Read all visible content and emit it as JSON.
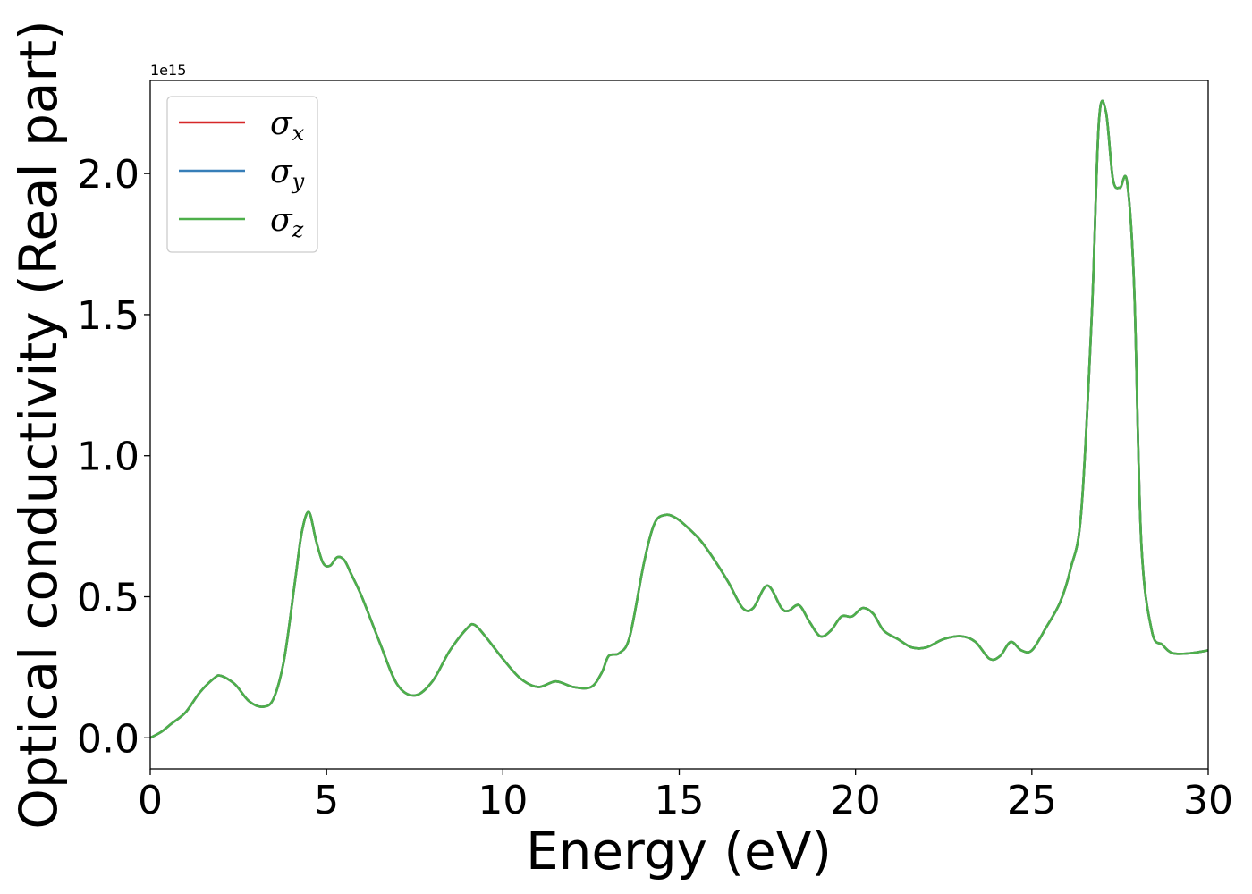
{
  "chart_data": {
    "type": "line",
    "xlabel": "Energy (eV)",
    "ylabel": "Optical conductivity (Real part)",
    "y_offset_label": "1e15",
    "xlim": [
      0,
      30
    ],
    "ylim": [
      -0.11,
      2.33
    ],
    "y_scale_factor": 1000000000000000.0,
    "x_ticks": [
      0,
      5,
      10,
      15,
      20,
      25,
      30
    ],
    "x_tick_labels": [
      "0",
      "5",
      "10",
      "15",
      "20",
      "25",
      "30"
    ],
    "y_ticks": [
      0.0,
      0.5,
      1.0,
      1.5,
      2.0
    ],
    "y_tick_labels": [
      "0.0",
      "0.5",
      "1.0",
      "1.5",
      "2.0"
    ],
    "grid": false,
    "legend_position": "top-left",
    "series": [
      {
        "name": "σx",
        "symbol": "σ",
        "subscript": "x",
        "color": "#d62728",
        "x": [
          0,
          0.3,
          0.6,
          1.0,
          1.4,
          1.8,
          2.0,
          2.4,
          2.8,
          3.2,
          3.5,
          3.8,
          4.1,
          4.3,
          4.5,
          4.7,
          4.9,
          5.1,
          5.3,
          5.5,
          5.7,
          6.0,
          6.5,
          7.0,
          7.5,
          8.0,
          8.5,
          9.0,
          9.2,
          9.5,
          10.0,
          10.5,
          11.0,
          11.5,
          12.0,
          12.5,
          12.8,
          13.0,
          13.3,
          13.6,
          14.0,
          14.3,
          14.6,
          14.9,
          15.2,
          15.6,
          16.0,
          16.4,
          16.8,
          17.1,
          17.5,
          17.9,
          18.1,
          18.4,
          18.7,
          19.0,
          19.3,
          19.6,
          19.9,
          20.2,
          20.5,
          20.8,
          21.2,
          21.6,
          22.0,
          22.5,
          23.0,
          23.4,
          23.8,
          24.1,
          24.4,
          24.7,
          25.0,
          25.4,
          25.8,
          26.1,
          26.4,
          26.7,
          26.9,
          27.1,
          27.3,
          27.5,
          27.7,
          27.9,
          28.1,
          28.4,
          28.7,
          29.0,
          29.5,
          30.0
        ],
        "y": [
          0,
          0.02,
          0.05,
          0.09,
          0.16,
          0.21,
          0.22,
          0.19,
          0.13,
          0.11,
          0.14,
          0.28,
          0.55,
          0.73,
          0.8,
          0.7,
          0.62,
          0.61,
          0.64,
          0.63,
          0.58,
          0.5,
          0.34,
          0.19,
          0.15,
          0.2,
          0.31,
          0.39,
          0.4,
          0.36,
          0.28,
          0.21,
          0.18,
          0.2,
          0.18,
          0.18,
          0.23,
          0.29,
          0.3,
          0.36,
          0.62,
          0.76,
          0.79,
          0.78,
          0.75,
          0.7,
          0.63,
          0.55,
          0.46,
          0.46,
          0.54,
          0.46,
          0.45,
          0.47,
          0.41,
          0.36,
          0.38,
          0.43,
          0.43,
          0.46,
          0.44,
          0.38,
          0.35,
          0.32,
          0.32,
          0.35,
          0.36,
          0.34,
          0.28,
          0.29,
          0.34,
          0.31,
          0.31,
          0.39,
          0.48,
          0.6,
          0.8,
          1.5,
          2.18,
          2.22,
          1.98,
          1.95,
          1.97,
          1.6,
          0.7,
          0.38,
          0.33,
          0.3,
          0.3,
          0.31
        ]
      },
      {
        "name": "σy",
        "symbol": "σ",
        "subscript": "y",
        "color": "#377eb8",
        "x": [
          0,
          0.3,
          0.6,
          1.0,
          1.4,
          1.8,
          2.0,
          2.4,
          2.8,
          3.2,
          3.5,
          3.8,
          4.1,
          4.3,
          4.5,
          4.7,
          4.9,
          5.1,
          5.3,
          5.5,
          5.7,
          6.0,
          6.5,
          7.0,
          7.5,
          8.0,
          8.5,
          9.0,
          9.2,
          9.5,
          10.0,
          10.5,
          11.0,
          11.5,
          12.0,
          12.5,
          12.8,
          13.0,
          13.3,
          13.6,
          14.0,
          14.3,
          14.6,
          14.9,
          15.2,
          15.6,
          16.0,
          16.4,
          16.8,
          17.1,
          17.5,
          17.9,
          18.1,
          18.4,
          18.7,
          19.0,
          19.3,
          19.6,
          19.9,
          20.2,
          20.5,
          20.8,
          21.2,
          21.6,
          22.0,
          22.5,
          23.0,
          23.4,
          23.8,
          24.1,
          24.4,
          24.7,
          25.0,
          25.4,
          25.8,
          26.1,
          26.4,
          26.7,
          26.9,
          27.1,
          27.3,
          27.5,
          27.7,
          27.9,
          28.1,
          28.4,
          28.7,
          29.0,
          29.5,
          30.0
        ],
        "y": [
          0,
          0.02,
          0.05,
          0.09,
          0.16,
          0.21,
          0.22,
          0.19,
          0.13,
          0.11,
          0.14,
          0.28,
          0.55,
          0.73,
          0.8,
          0.7,
          0.62,
          0.61,
          0.64,
          0.63,
          0.58,
          0.5,
          0.34,
          0.19,
          0.15,
          0.2,
          0.31,
          0.39,
          0.4,
          0.36,
          0.28,
          0.21,
          0.18,
          0.2,
          0.18,
          0.18,
          0.23,
          0.29,
          0.3,
          0.36,
          0.62,
          0.76,
          0.79,
          0.78,
          0.75,
          0.7,
          0.63,
          0.55,
          0.46,
          0.46,
          0.54,
          0.46,
          0.45,
          0.47,
          0.41,
          0.36,
          0.38,
          0.43,
          0.43,
          0.46,
          0.44,
          0.38,
          0.35,
          0.32,
          0.32,
          0.35,
          0.36,
          0.34,
          0.28,
          0.29,
          0.34,
          0.31,
          0.31,
          0.39,
          0.48,
          0.6,
          0.8,
          1.5,
          2.18,
          2.22,
          1.98,
          1.95,
          1.97,
          1.6,
          0.7,
          0.38,
          0.33,
          0.3,
          0.3,
          0.31
        ]
      },
      {
        "name": "σz",
        "symbol": "σ",
        "subscript": "z",
        "color": "#4daf4a",
        "x": [
          0,
          0.3,
          0.6,
          1.0,
          1.4,
          1.8,
          2.0,
          2.4,
          2.8,
          3.2,
          3.5,
          3.8,
          4.1,
          4.3,
          4.5,
          4.7,
          4.9,
          5.1,
          5.3,
          5.5,
          5.7,
          6.0,
          6.5,
          7.0,
          7.5,
          8.0,
          8.5,
          9.0,
          9.2,
          9.5,
          10.0,
          10.5,
          11.0,
          11.5,
          12.0,
          12.5,
          12.8,
          13.0,
          13.3,
          13.6,
          14.0,
          14.3,
          14.6,
          14.9,
          15.2,
          15.6,
          16.0,
          16.4,
          16.8,
          17.1,
          17.5,
          17.9,
          18.1,
          18.4,
          18.7,
          19.0,
          19.3,
          19.6,
          19.9,
          20.2,
          20.5,
          20.8,
          21.2,
          21.6,
          22.0,
          22.5,
          23.0,
          23.4,
          23.8,
          24.1,
          24.4,
          24.7,
          25.0,
          25.4,
          25.8,
          26.1,
          26.4,
          26.7,
          26.9,
          27.1,
          27.3,
          27.5,
          27.7,
          27.9,
          28.1,
          28.4,
          28.7,
          29.0,
          29.5,
          30.0
        ],
        "y": [
          0,
          0.02,
          0.05,
          0.09,
          0.16,
          0.21,
          0.22,
          0.19,
          0.13,
          0.11,
          0.14,
          0.28,
          0.55,
          0.73,
          0.8,
          0.7,
          0.62,
          0.61,
          0.64,
          0.63,
          0.58,
          0.5,
          0.34,
          0.19,
          0.15,
          0.2,
          0.31,
          0.39,
          0.4,
          0.36,
          0.28,
          0.21,
          0.18,
          0.2,
          0.18,
          0.18,
          0.23,
          0.29,
          0.3,
          0.36,
          0.62,
          0.76,
          0.79,
          0.78,
          0.75,
          0.7,
          0.63,
          0.55,
          0.46,
          0.46,
          0.54,
          0.46,
          0.45,
          0.47,
          0.41,
          0.36,
          0.38,
          0.43,
          0.43,
          0.46,
          0.44,
          0.38,
          0.35,
          0.32,
          0.32,
          0.35,
          0.36,
          0.34,
          0.28,
          0.29,
          0.34,
          0.31,
          0.31,
          0.39,
          0.48,
          0.6,
          0.8,
          1.5,
          2.18,
          2.22,
          1.98,
          1.95,
          1.97,
          1.6,
          0.7,
          0.38,
          0.33,
          0.3,
          0.3,
          0.31
        ]
      }
    ]
  }
}
